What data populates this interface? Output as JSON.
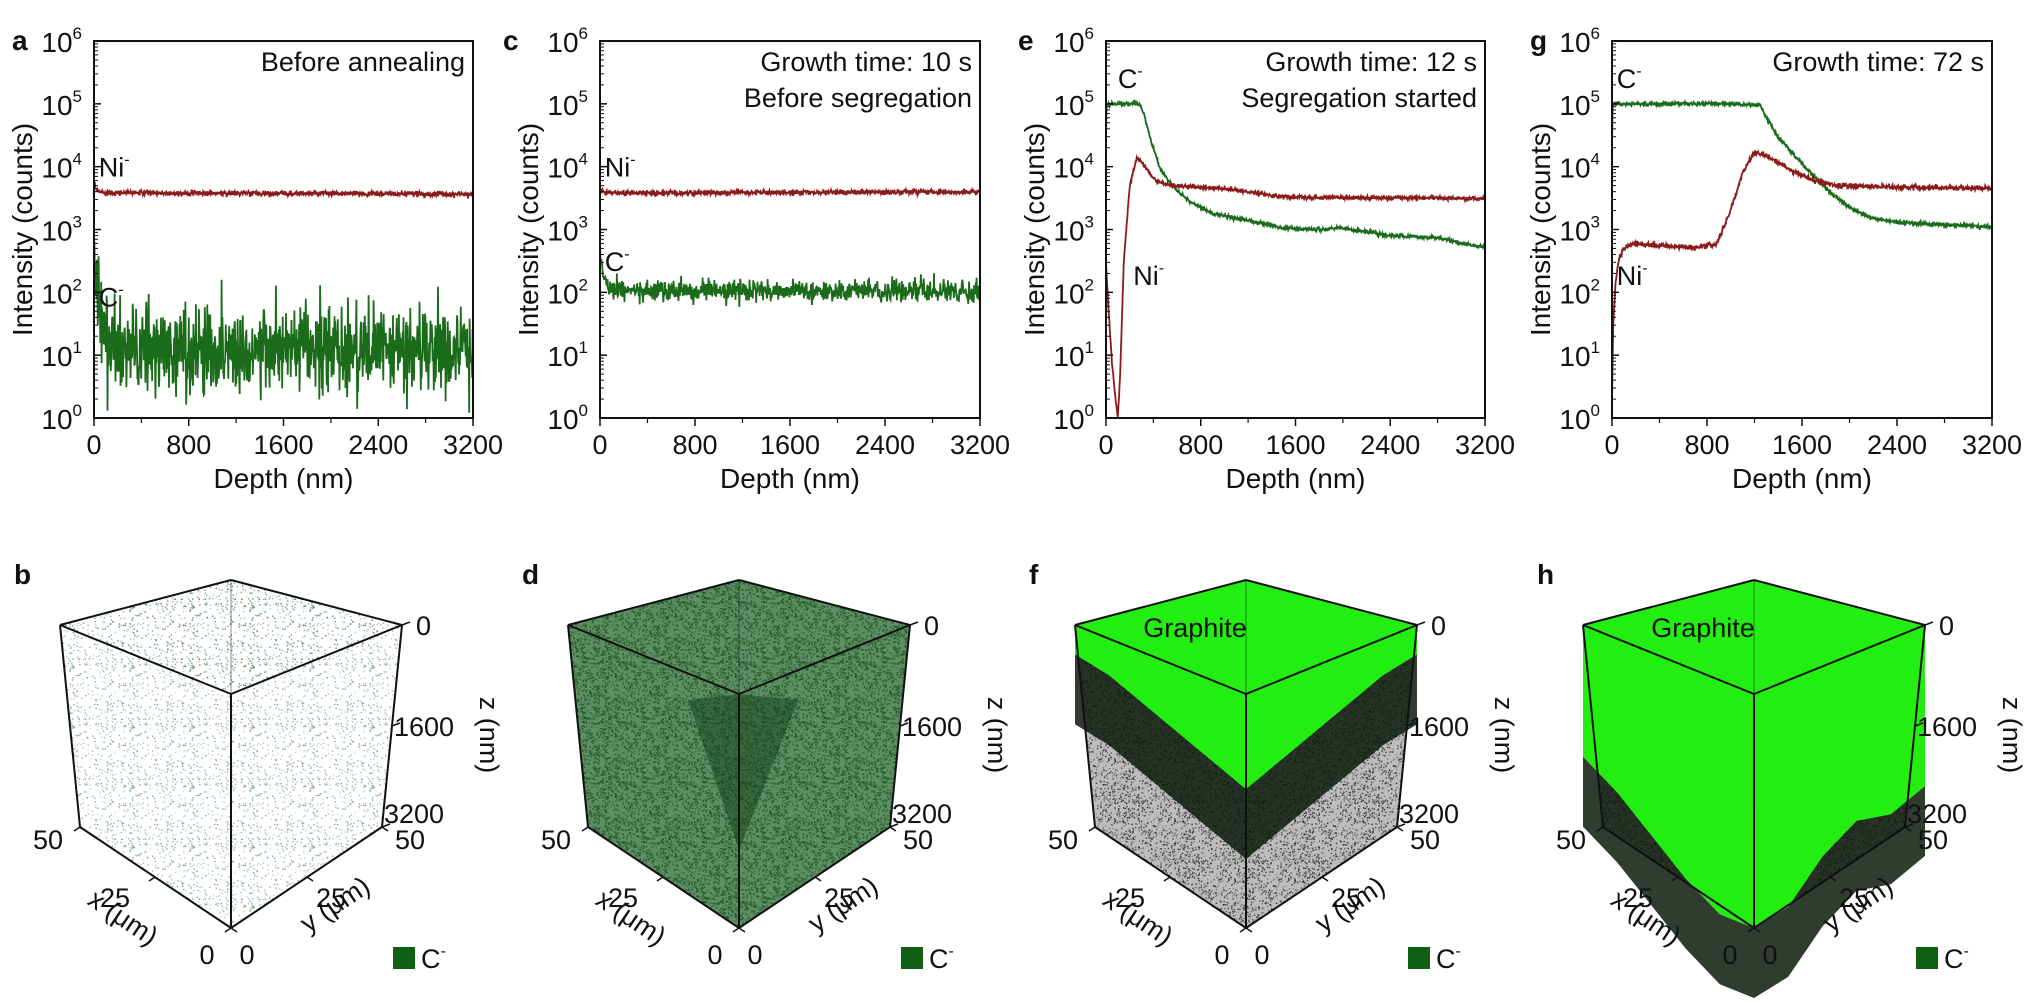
{
  "colors": {
    "ni": "#8b1a1a",
    "c": "#1a6b1a",
    "graphite": "#22ee11",
    "legend_c": "#0f5f14"
  },
  "chart_data": [
    {
      "panel": "a",
      "type": "line",
      "annotation": [
        "Before annealing"
      ],
      "xlabel": "Depth (nm)",
      "ylabel": "Intensity (counts)",
      "xlim": [
        0,
        3200
      ],
      "ylim": [
        1,
        1000000
      ],
      "yscale": "log",
      "xticks": [
        "0",
        "800",
        "1600",
        "2400",
        "3200"
      ],
      "yticks": [
        "10",
        "10",
        "10",
        "10",
        "10",
        "10",
        "10"
      ],
      "ytick_exp": [
        "0",
        "1",
        "2",
        "3",
        "4",
        "5",
        "6"
      ],
      "series": [
        {
          "name": "Ni",
          "label_sup": "-",
          "color": "#8b1a1a",
          "noise": 0.02,
          "x": [
            0,
            20,
            60,
            200,
            800,
            1600,
            2400,
            3200
          ],
          "y": [
            5500,
            4200,
            3900,
            3850,
            3800,
            3750,
            3700,
            3650
          ]
        },
        {
          "name": "C",
          "label_sup": "-",
          "color": "#1a6b1a",
          "noise": 0.35,
          "x": [
            0,
            20,
            60,
            100,
            140,
            200,
            800,
            1600,
            2400,
            3200
          ],
          "y": [
            600,
            200,
            50,
            20,
            13,
            12,
            12,
            12,
            12,
            12
          ]
        }
      ],
      "series_labels": [
        {
          "text": "Ni",
          "sup": "-",
          "x": 40,
          "y": 7000
        },
        {
          "text": "C",
          "sup": "-",
          "x": 40,
          "y": 60
        }
      ]
    },
    {
      "panel": "c",
      "type": "line",
      "annotation": [
        "Growth time: 10 s",
        "Before segregation"
      ],
      "xlabel": "Depth (nm)",
      "ylabel": "Intensity (counts)",
      "xlim": [
        0,
        3200
      ],
      "ylim": [
        1,
        1000000
      ],
      "yscale": "log",
      "xticks": [
        "0",
        "800",
        "1600",
        "2400",
        "3200"
      ],
      "yticks": [
        "10",
        "10",
        "10",
        "10",
        "10",
        "10",
        "10"
      ],
      "ytick_exp": [
        "0",
        "1",
        "2",
        "3",
        "4",
        "5",
        "6"
      ],
      "series": [
        {
          "name": "Ni",
          "label_sup": "-",
          "color": "#8b1a1a",
          "noise": 0.02,
          "x": [
            0,
            40,
            200,
            800,
            1600,
            2400,
            3200
          ],
          "y": [
            4300,
            3900,
            3800,
            3850,
            3900,
            3950,
            4000
          ]
        },
        {
          "name": "C",
          "label_sup": "-",
          "color": "#1a6b1a",
          "noise": 0.08,
          "x": [
            0,
            20,
            60,
            100,
            200,
            800,
            1600,
            2400,
            3200
          ],
          "y": [
            400,
            250,
            130,
            110,
            105,
            105,
            105,
            105,
            105
          ]
        }
      ],
      "series_labels": [
        {
          "text": "Ni",
          "sup": "-",
          "x": 40,
          "y": 7000
        },
        {
          "text": "C",
          "sup": "-",
          "x": 40,
          "y": 220
        }
      ]
    },
    {
      "panel": "e",
      "type": "line",
      "annotation": [
        "Growth time: 12 s",
        "Segregation started"
      ],
      "xlabel": "Depth (nm)",
      "ylabel": "Intensity (counts)",
      "xlim": [
        0,
        3200
      ],
      "ylim": [
        1,
        1000000
      ],
      "yscale": "log",
      "xticks": [
        "0",
        "800",
        "1600",
        "2400",
        "3200"
      ],
      "yticks": [
        "10",
        "10",
        "10",
        "10",
        "10",
        "10",
        "10"
      ],
      "ytick_exp": [
        "0",
        "1",
        "2",
        "3",
        "4",
        "5",
        "6"
      ],
      "series": [
        {
          "name": "C",
          "label_sup": "-",
          "color": "#1a6b1a",
          "noise": 0.015,
          "x": [
            0,
            5,
            20,
            280,
            320,
            380,
            460,
            560,
            700,
            900,
            1200,
            1500,
            1800,
            2000,
            2400,
            2800,
            3000,
            3200
          ],
          "y": [
            30000,
            100000,
            100000,
            100000,
            70000,
            25000,
            9000,
            5000,
            2800,
            1800,
            1400,
            1050,
            1000,
            1050,
            800,
            750,
            600,
            520
          ]
        },
        {
          "name": "Ni",
          "label_sup": "-",
          "color": "#8b1a1a",
          "noise": 0.015,
          "x": [
            0,
            20,
            50,
            80,
            100,
            120,
            150,
            200,
            260,
            300,
            400,
            500,
            700,
            900,
            1200,
            1500,
            2000,
            2600,
            3200
          ],
          "y": [
            300,
            60,
            8,
            2,
            1,
            5,
            300,
            5000,
            14000,
            12000,
            6500,
            5200,
            4800,
            4600,
            4000,
            3300,
            3200,
            3200,
            3100
          ]
        }
      ],
      "series_labels": [
        {
          "text": "C",
          "sup": "-",
          "x": 100,
          "y": 180000
        },
        {
          "text": "Ni",
          "sup": "-",
          "x": 230,
          "y": 130
        }
      ]
    },
    {
      "panel": "g",
      "type": "line",
      "annotation": [
        "Growth time: 72 s"
      ],
      "xlabel": "Depth (nm)",
      "ylabel": "Intensity (counts)",
      "xlim": [
        0,
        3200
      ],
      "ylim": [
        1,
        1000000
      ],
      "yscale": "log",
      "xticks": [
        "0",
        "800",
        "1600",
        "2400",
        "3200"
      ],
      "yticks": [
        "10",
        "10",
        "10",
        "10",
        "10",
        "10",
        "10"
      ],
      "ytick_exp": [
        "0",
        "1",
        "2",
        "3",
        "4",
        "5",
        "6"
      ],
      "series": [
        {
          "name": "C",
          "label_sup": "-",
          "color": "#1a6b1a",
          "noise": 0.015,
          "x": [
            0,
            5,
            20,
            600,
            1000,
            1250,
            1300,
            1400,
            1600,
            1800,
            2000,
            2200,
            2400,
            2800,
            3200
          ],
          "y": [
            20000,
            100000,
            100000,
            100000,
            100000,
            95000,
            60000,
            30000,
            11000,
            4500,
            2200,
            1500,
            1300,
            1200,
            1100
          ]
        },
        {
          "name": "Ni",
          "label_sup": "-",
          "color": "#8b1a1a",
          "noise": 0.02,
          "x": [
            0,
            10,
            30,
            60,
            100,
            180,
            400,
            700,
            880,
            1000,
            1100,
            1200,
            1300,
            1500,
            1700,
            1900,
            2400,
            3200
          ],
          "y": [
            2,
            30,
            150,
            350,
            500,
            600,
            550,
            520,
            580,
            2000,
            8000,
            17000,
            15000,
            9000,
            6000,
            5000,
            4700,
            4500
          ]
        }
      ],
      "series_labels": [
        {
          "text": "C",
          "sup": "-",
          "x": 40,
          "y": 180000
        },
        {
          "text": "Ni",
          "sup": "-",
          "x": 40,
          "y": 130
        }
      ]
    }
  ],
  "cubes": [
    {
      "panel": "b",
      "fill": "sparse-green",
      "graphite_label": "",
      "graphite_front": [],
      "graphite_right": []
    },
    {
      "panel": "d",
      "fill": "dense-green",
      "graphite_label": "",
      "graphite_front": [],
      "graphite_right": []
    },
    {
      "panel": "f",
      "fill": "graphite-shallow",
      "graphite_label": "Graphite",
      "graphite_depth_nm_front": [
        400,
        500,
        700,
        900,
        1100,
        1300
      ],
      "graphite_depth_nm_right": [
        1300,
        1100,
        900,
        700,
        500,
        400
      ]
    },
    {
      "panel": "h",
      "fill": "graphite-deep",
      "graphite_label": "Graphite",
      "graphite_depth_nm_front": [
        1800,
        2100,
        2500,
        2900,
        3200,
        3200
      ],
      "graphite_depth_nm_right": [
        3200,
        3100,
        2600,
        2300,
        2400,
        2200
      ]
    }
  ],
  "cube_axes": {
    "z_ticks": [
      "0",
      "1600",
      "3200"
    ],
    "z_label": "z (nm)",
    "x_ticks": [
      "50",
      "25",
      "0"
    ],
    "x_label": "x (μm)",
    "y_ticks": [
      "0",
      "25",
      "50"
    ],
    "y_label": "y (μm)",
    "legend_label": "C",
    "legend_sup": "-"
  }
}
